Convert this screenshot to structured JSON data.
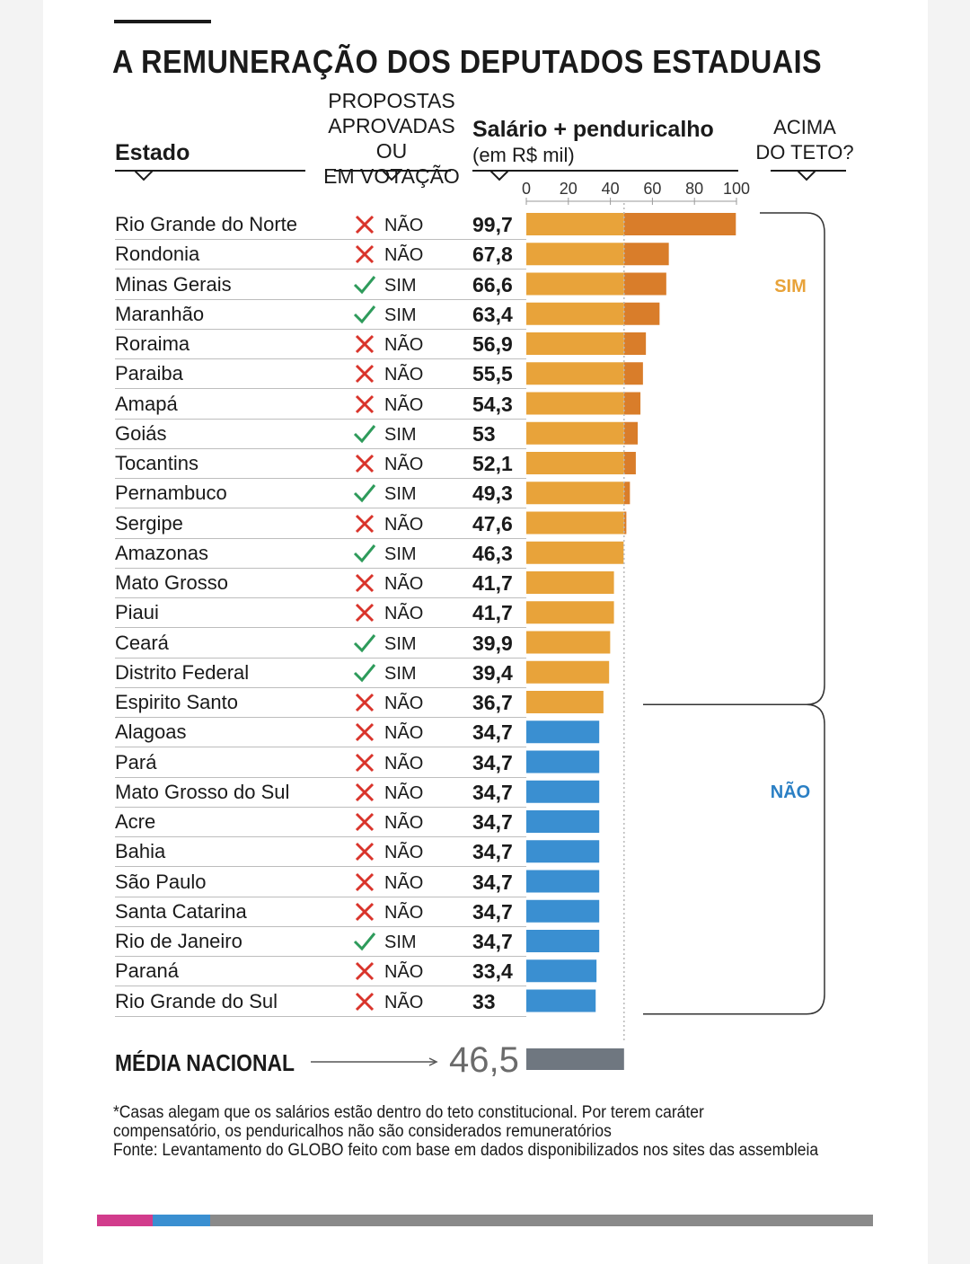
{
  "title": "A REMUNERAÇÃO DOS DEPUTADOS ESTADUAIS",
  "headers": {
    "estado": "Estado",
    "propostas_lines": [
      "PROPOSTAS",
      "APROVADAS OU",
      "EM VOTAÇÃO"
    ],
    "salario": "Salário + penduricalho",
    "salario_unit": "(em R$ mil)",
    "acima_lines": [
      "ACIMA",
      "DO TETO?"
    ]
  },
  "group_labels": {
    "sim": "SIM",
    "nao": "NÃO"
  },
  "average": {
    "label": "MÉDIA NACIONAL",
    "value": "46,5"
  },
  "notes": [
    "*Casas alegam que os salários estão dentro do teto constitucional. Por terem caráter",
    "compensatório, os penduricalhos não são considerados remuneratórios",
    "Fonte: Levantamento do GLOBO feito com base em dados disponibilizados nos sites das assembleia"
  ],
  "colors": {
    "above_ceiling": "#e8a33a",
    "above_ceiling_excess": "#d97d2a",
    "below_ceiling": "#3a8fd1",
    "average": "#6f7780",
    "yes_mark": "#2e9b5b",
    "no_mark": "#d9342b",
    "sim_label": "#e8a33a",
    "nao_label": "#2a7fc4",
    "bottom_bar": [
      "#d23c8c",
      "#3a8fd1",
      "#8a8a8a"
    ]
  },
  "chart_data": {
    "type": "bar",
    "orientation": "horizontal",
    "title": "A REMUNERAÇÃO DOS DEPUTADOS ESTADUAIS",
    "xlabel": "Salário + penduricalho (em R$ mil)",
    "xlim": [
      0,
      100
    ],
    "ticks": [
      0,
      20,
      40,
      60,
      80,
      100
    ],
    "ceiling": 46.5,
    "average": 46.5,
    "rows": [
      {
        "state": "Rio Grande do Norte",
        "proposta": "NÃO",
        "value": 99.7,
        "label": "99,7",
        "above": true
      },
      {
        "state": "Rondonia",
        "proposta": "NÃO",
        "value": 67.8,
        "label": "67,8",
        "above": true
      },
      {
        "state": "Minas Gerais",
        "proposta": "SIM",
        "value": 66.6,
        "label": "66,6",
        "above": true
      },
      {
        "state": "Maranhão",
        "proposta": "SIM",
        "value": 63.4,
        "label": "63,4",
        "above": true
      },
      {
        "state": "Roraima",
        "proposta": "NÃO",
        "value": 56.9,
        "label": "56,9",
        "above": true
      },
      {
        "state": "Paraiba",
        "proposta": "NÃO",
        "value": 55.5,
        "label": "55,5",
        "above": true
      },
      {
        "state": "Amapá",
        "proposta": "NÃO",
        "value": 54.3,
        "label": "54,3",
        "above": true
      },
      {
        "state": "Goiás",
        "proposta": "SIM",
        "value": 53,
        "label": "53",
        "above": true
      },
      {
        "state": "Tocantins",
        "proposta": "NÃO",
        "value": 52.1,
        "label": "52,1",
        "above": true
      },
      {
        "state": "Pernambuco",
        "proposta": "SIM",
        "value": 49.3,
        "label": "49,3",
        "above": true
      },
      {
        "state": "Sergipe",
        "proposta": "NÃO",
        "value": 47.6,
        "label": "47,6",
        "above": true
      },
      {
        "state": "Amazonas",
        "proposta": "SIM",
        "value": 46.3,
        "label": "46,3",
        "above": true
      },
      {
        "state": "Mato Grosso",
        "proposta": "NÃO",
        "value": 41.7,
        "label": "41,7",
        "above": true
      },
      {
        "state": "Piaui",
        "proposta": "NÃO",
        "value": 41.7,
        "label": "41,7",
        "above": true
      },
      {
        "state": "Ceará",
        "proposta": "SIM",
        "value": 39.9,
        "label": "39,9",
        "above": true
      },
      {
        "state": "Distrito Federal",
        "proposta": "SIM",
        "value": 39.4,
        "label": "39,4",
        "above": true
      },
      {
        "state": "Espirito Santo",
        "proposta": "NÃO",
        "value": 36.7,
        "label": "36,7",
        "above": true
      },
      {
        "state": "Alagoas",
        "proposta": "NÃO",
        "value": 34.7,
        "label": "34,7",
        "above": false
      },
      {
        "state": "Pará",
        "proposta": "NÃO",
        "value": 34.7,
        "label": "34,7",
        "above": false
      },
      {
        "state": "Mato Grosso do Sul",
        "proposta": "NÃO",
        "value": 34.7,
        "label": "34,7",
        "above": false
      },
      {
        "state": "Acre",
        "proposta": "NÃO",
        "value": 34.7,
        "label": "34,7",
        "above": false
      },
      {
        "state": "Bahia",
        "proposta": "NÃO",
        "value": 34.7,
        "label": "34,7",
        "above": false
      },
      {
        "state": "São Paulo",
        "proposta": "NÃO",
        "value": 34.7,
        "label": "34,7",
        "above": false
      },
      {
        "state": "Santa Catarina",
        "proposta": "NÃO",
        "value": 34.7,
        "label": "34,7",
        "above": false
      },
      {
        "state": "Rio de Janeiro",
        "proposta": "SIM",
        "value": 34.7,
        "label": "34,7",
        "above": false
      },
      {
        "state": "Paraná",
        "proposta": "NÃO",
        "value": 33.4,
        "label": "33,4",
        "above": false
      },
      {
        "state": "Rio Grande do Sul",
        "proposta": "NÃO",
        "value": 33,
        "label": "33",
        "above": false
      }
    ]
  }
}
